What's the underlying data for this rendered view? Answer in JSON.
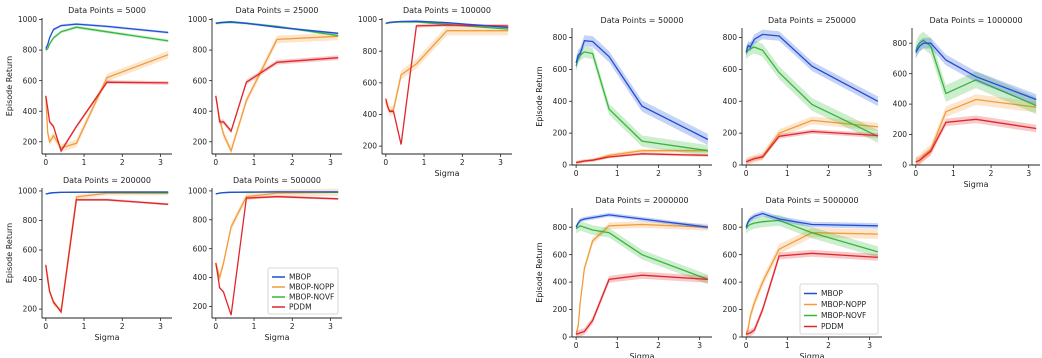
{
  "colors": {
    "MBOP": "#1f4ed8",
    "MBOP-NOPP": "#f39c3a",
    "MBOP-NOVF": "#35b83a",
    "PDDM": "#e0262b"
  },
  "legends": [
    {
      "entries": [
        "MBOP",
        "MBOP-NOPP",
        "MBOP-NOVF",
        "PDDM"
      ],
      "placement": "lower-right of panel 'Data Points = 500000'"
    },
    {
      "entries": [
        "MBOP",
        "MBOP-NOPP",
        "MBOP-NOVF",
        "PDDM"
      ],
      "placement": "lower-left of panel 'Data Points = 5000000'"
    }
  ],
  "chart_data": [
    {
      "type": "line",
      "title": "Data Points = 5000",
      "xlabel": "",
      "ylabel": "Episode Return",
      "xlim": [
        -0.1,
        3.3
      ],
      "ylim": [
        120,
        1010
      ],
      "xticks": [
        0,
        1,
        2,
        3
      ],
      "xtick_labels": [
        "0",
        "1",
        "2",
        "3"
      ],
      "yticks": [
        200,
        400,
        600,
        800,
        1000
      ],
      "ytick_labels": [
        "200",
        "400",
        "600",
        "800",
        "1000"
      ],
      "x": [
        0,
        0.05,
        0.1,
        0.2,
        0.4,
        0.8,
        1.6,
        3.2
      ],
      "series": [
        {
          "name": "MBOP",
          "values": [
            810,
            835,
            880,
            935,
            960,
            970,
            955,
            915
          ],
          "band": 8
        },
        {
          "name": "MBOP-NOPP",
          "values": [
            500,
            260,
            200,
            240,
            160,
            190,
            620,
            770
          ],
          "band": 25
        },
        {
          "name": "MBOP-NOVF",
          "values": [
            800,
            810,
            840,
            880,
            920,
            950,
            920,
            860
          ],
          "band": 10
        },
        {
          "name": "PDDM",
          "values": [
            500,
            420,
            330,
            300,
            140,
            300,
            590,
            585
          ],
          "band": 12
        }
      ]
    },
    {
      "type": "line",
      "title": "Data Points = 25000",
      "xlabel": "",
      "ylabel": "",
      "xlim": [
        -0.1,
        3.3
      ],
      "ylim": [
        120,
        1010
      ],
      "xticks": [
        0,
        1,
        2,
        3
      ],
      "xtick_labels": [
        "0",
        "1",
        "2",
        "3"
      ],
      "yticks": [
        200,
        400,
        600,
        800,
        1000
      ],
      "ytick_labels": [
        "200",
        "400",
        "600",
        "800",
        "1000"
      ],
      "x": [
        0,
        0.05,
        0.1,
        0.2,
        0.4,
        0.8,
        1.6,
        3.2
      ],
      "series": [
        {
          "name": "MBOP",
          "values": [
            975,
            978,
            980,
            982,
            985,
            975,
            950,
            910
          ],
          "band": 6
        },
        {
          "name": "MBOP-NOPP",
          "values": [
            500,
            420,
            350,
            250,
            140,
            470,
            870,
            890
          ],
          "band": 25
        },
        {
          "name": "MBOP-NOVF",
          "values": [
            975,
            975,
            977,
            980,
            982,
            975,
            955,
            895
          ],
          "band": 8
        },
        {
          "name": "PDDM",
          "values": [
            500,
            420,
            330,
            330,
            270,
            590,
            720,
            750
          ],
          "band": 15
        }
      ]
    },
    {
      "type": "line",
      "title": "Data Points = 100000",
      "xlabel": "Sigma",
      "ylabel": "",
      "xlim": [
        -0.1,
        3.3
      ],
      "ylim": [
        150,
        1010
      ],
      "xticks": [
        0,
        1,
        2,
        3
      ],
      "xtick_labels": [
        "0",
        "1",
        "2",
        "3"
      ],
      "yticks": [
        200,
        400,
        600,
        800,
        1000
      ],
      "ytick_labels": [
        "200",
        "400",
        "600",
        "800",
        "1000"
      ],
      "x": [
        0,
        0.05,
        0.1,
        0.2,
        0.4,
        0.8,
        1.6,
        3.2
      ],
      "series": [
        {
          "name": "MBOP",
          "values": [
            975,
            980,
            982,
            985,
            988,
            990,
            980,
            950
          ],
          "band": 5
        },
        {
          "name": "MBOP-NOPP",
          "values": [
            480,
            450,
            420,
            430,
            650,
            720,
            930,
            930
          ],
          "band": 30
        },
        {
          "name": "MBOP-NOVF",
          "values": [
            975,
            978,
            980,
            983,
            986,
            985,
            970,
            940
          ],
          "band": 6
        },
        {
          "name": "PDDM",
          "values": [
            500,
            450,
            420,
            420,
            210,
            960,
            965,
            960
          ],
          "band": 10
        }
      ]
    },
    {
      "type": "line",
      "title": "Data Points = 200000",
      "xlabel": "Sigma",
      "ylabel": "Episode Return",
      "xlim": [
        -0.1,
        3.3
      ],
      "ylim": [
        140,
        1020
      ],
      "xticks": [
        0,
        1,
        2,
        3
      ],
      "xtick_labels": [
        "0",
        "1",
        "2",
        "3"
      ],
      "yticks": [
        200,
        400,
        600,
        800,
        1000
      ],
      "ytick_labels": [
        "200",
        "400",
        "600",
        "800",
        "1000"
      ],
      "x": [
        0,
        0.05,
        0.1,
        0.2,
        0.4,
        0.8,
        1.6,
        3.2
      ],
      "series": [
        {
          "name": "MBOP",
          "values": [
            980,
            982,
            985,
            988,
            990,
            992,
            993,
            993
          ],
          "band": 4
        },
        {
          "name": "MBOP-NOPP",
          "values": [
            490,
            420,
            320,
            240,
            190,
            960,
            985,
            985
          ],
          "band": 15
        },
        {
          "name": "MBOP-NOVF",
          "values": [
            980,
            982,
            985,
            988,
            990,
            990,
            990,
            988
          ],
          "band": 4
        },
        {
          "name": "PDDM",
          "values": [
            500,
            400,
            320,
            250,
            180,
            940,
            940,
            910
          ],
          "band": 8
        }
      ]
    },
    {
      "type": "line",
      "title": "Data Points = 500000",
      "xlabel": "Sigma",
      "ylabel": "",
      "xlim": [
        -0.1,
        3.3
      ],
      "ylim": [
        120,
        1020
      ],
      "xticks": [
        0,
        1,
        2,
        3
      ],
      "xtick_labels": [
        "0",
        "1",
        "2",
        "3"
      ],
      "yticks": [
        200,
        400,
        600,
        800,
        1000
      ],
      "ytick_labels": [
        "200",
        "400",
        "600",
        "800",
        "1000"
      ],
      "x": [
        0,
        0.05,
        0.1,
        0.2,
        0.4,
        0.8,
        1.6,
        3.2
      ],
      "series": [
        {
          "name": "MBOP",
          "values": [
            980,
            982,
            985,
            988,
            990,
            992,
            993,
            993
          ],
          "band": 4
        },
        {
          "name": "MBOP-NOPP",
          "values": [
            500,
            450,
            400,
            500,
            750,
            960,
            985,
            990
          ],
          "band": 25
        },
        {
          "name": "MBOP-NOVF",
          "values": [
            980,
            982,
            985,
            988,
            990,
            990,
            992,
            990
          ],
          "band": 4
        },
        {
          "name": "PDDM",
          "values": [
            500,
            420,
            330,
            300,
            140,
            950,
            960,
            945
          ],
          "band": 8
        }
      ]
    },
    {
      "type": "line",
      "title": "Data Points = 50000",
      "xlabel": "",
      "ylabel": "Episode Return",
      "xlim": [
        -0.1,
        3.3
      ],
      "ylim": [
        0,
        860
      ],
      "xticks": [
        0,
        1,
        2,
        3
      ],
      "xtick_labels": [
        "0",
        "1",
        "2",
        "3"
      ],
      "yticks": [
        0,
        200,
        400,
        600,
        800
      ],
      "ytick_labels": [
        "0",
        "200",
        "400",
        "600",
        "800"
      ],
      "x": [
        0,
        0.05,
        0.1,
        0.2,
        0.4,
        0.8,
        1.6,
        3.2
      ],
      "series": [
        {
          "name": "MBOP",
          "values": [
            640,
            690,
            700,
            780,
            775,
            680,
            370,
            160
          ],
          "band": 35
        },
        {
          "name": "MBOP-NOPP",
          "values": [
            15,
            18,
            20,
            25,
            30,
            60,
            90,
            90
          ],
          "band": 12
        },
        {
          "name": "MBOP-NOVF",
          "values": [
            620,
            670,
            690,
            710,
            700,
            350,
            150,
            90
          ],
          "band": 35
        },
        {
          "name": "PDDM",
          "values": [
            15,
            18,
            20,
            25,
            30,
            50,
            70,
            60
          ],
          "band": 8
        }
      ]
    },
    {
      "type": "line",
      "title": "Data Points = 250000",
      "xlabel": "",
      "ylabel": "",
      "xlim": [
        -0.1,
        3.3
      ],
      "ylim": [
        0,
        860
      ],
      "xticks": [
        0,
        1,
        2,
        3
      ],
      "xtick_labels": [
        "0",
        "1",
        "2",
        "3"
      ],
      "yticks": [
        0,
        200,
        400,
        600,
        800
      ],
      "ytick_labels": [
        "0",
        "200",
        "400",
        "600",
        "800"
      ],
      "x": [
        0,
        0.05,
        0.1,
        0.2,
        0.4,
        0.8,
        1.6,
        3.2
      ],
      "series": [
        {
          "name": "MBOP",
          "values": [
            710,
            750,
            740,
            790,
            820,
            810,
            620,
            400
          ],
          "band": 30
        },
        {
          "name": "MBOP-NOPP",
          "values": [
            20,
            25,
            30,
            40,
            55,
            200,
            280,
            240
          ],
          "band": 25
        },
        {
          "name": "MBOP-NOVF",
          "values": [
            700,
            720,
            730,
            740,
            720,
            580,
            380,
            180
          ],
          "band": 40
        },
        {
          "name": "PDDM",
          "values": [
            20,
            25,
            30,
            40,
            50,
            180,
            210,
            185
          ],
          "band": 15
        }
      ]
    },
    {
      "type": "line",
      "title": "Data Points = 1000000",
      "xlabel": "Sigma",
      "ylabel": "",
      "xlim": [
        -0.1,
        3.3
      ],
      "ylim": [
        0,
        900
      ],
      "xticks": [
        0,
        1,
        2,
        3
      ],
      "xtick_labels": [
        "0",
        "1",
        "2",
        "3"
      ],
      "yticks": [
        0,
        200,
        400,
        600,
        800
      ],
      "ytick_labels": [
        "0",
        "200",
        "400",
        "600",
        "800"
      ],
      "x": [
        0,
        0.05,
        0.1,
        0.2,
        0.4,
        0.8,
        1.6,
        3.2
      ],
      "series": [
        {
          "name": "MBOP",
          "values": [
            740,
            760,
            780,
            800,
            800,
            690,
            580,
            430
          ],
          "band": 35
        },
        {
          "name": "MBOP-NOPP",
          "values": [
            20,
            25,
            30,
            60,
            100,
            350,
            430,
            380
          ],
          "band": 35
        },
        {
          "name": "MBOP-NOVF",
          "values": [
            750,
            780,
            800,
            820,
            780,
            470,
            560,
            390
          ],
          "band": 55
        },
        {
          "name": "PDDM",
          "values": [
            20,
            25,
            30,
            50,
            90,
            280,
            300,
            240
          ],
          "band": 25
        }
      ]
    },
    {
      "type": "line",
      "title": "Data Points = 2000000",
      "xlabel": "Sigma",
      "ylabel": "Episode Return",
      "xlim": [
        -0.1,
        3.3
      ],
      "ylim": [
        0,
        940
      ],
      "xticks": [
        0,
        1,
        2,
        3
      ],
      "xtick_labels": [
        "0",
        "1",
        "2",
        "3"
      ],
      "yticks": [
        0,
        200,
        400,
        600,
        800
      ],
      "ytick_labels": [
        "0",
        "200",
        "400",
        "600",
        "800"
      ],
      "x": [
        0,
        0.05,
        0.1,
        0.2,
        0.4,
        0.8,
        1.6,
        3.2
      ],
      "series": [
        {
          "name": "MBOP",
          "values": [
            800,
            830,
            850,
            860,
            870,
            890,
            860,
            800
          ],
          "band": 15
        },
        {
          "name": "MBOP-NOPP",
          "values": [
            20,
            80,
            250,
            500,
            700,
            810,
            820,
            800
          ],
          "band": 25
        },
        {
          "name": "MBOP-NOVF",
          "values": [
            790,
            800,
            810,
            800,
            780,
            760,
            600,
            420
          ],
          "band": 35
        },
        {
          "name": "PDDM",
          "values": [
            20,
            25,
            30,
            40,
            120,
            420,
            450,
            420
          ],
          "band": 25
        }
      ]
    },
    {
      "type": "line",
      "title": "Data Points = 5000000",
      "xlabel": "Sigma",
      "ylabel": "",
      "xlim": [
        -0.1,
        3.3
      ],
      "ylim": [
        0,
        940
      ],
      "xticks": [
        0,
        1,
        2,
        3
      ],
      "xtick_labels": [
        "0",
        "1",
        "2",
        "3"
      ],
      "yticks": [
        0,
        200,
        400,
        600,
        800
      ],
      "ytick_labels": [
        "0",
        "200",
        "400",
        "600",
        "800"
      ],
      "x": [
        0,
        0.05,
        0.1,
        0.2,
        0.4,
        0.8,
        1.6,
        3.2
      ],
      "series": [
        {
          "name": "MBOP",
          "values": [
            800,
            840,
            860,
            880,
            900,
            860,
            820,
            810
          ],
          "band": 20
        },
        {
          "name": "MBOP-NOPP",
          "values": [
            20,
            60,
            150,
            250,
            400,
            640,
            760,
            750
          ],
          "band": 35
        },
        {
          "name": "MBOP-NOVF",
          "values": [
            790,
            810,
            820,
            830,
            840,
            850,
            760,
            620
          ],
          "band": 40
        },
        {
          "name": "PDDM",
          "values": [
            20,
            25,
            30,
            50,
            200,
            590,
            610,
            580
          ],
          "band": 25
        }
      ]
    }
  ]
}
